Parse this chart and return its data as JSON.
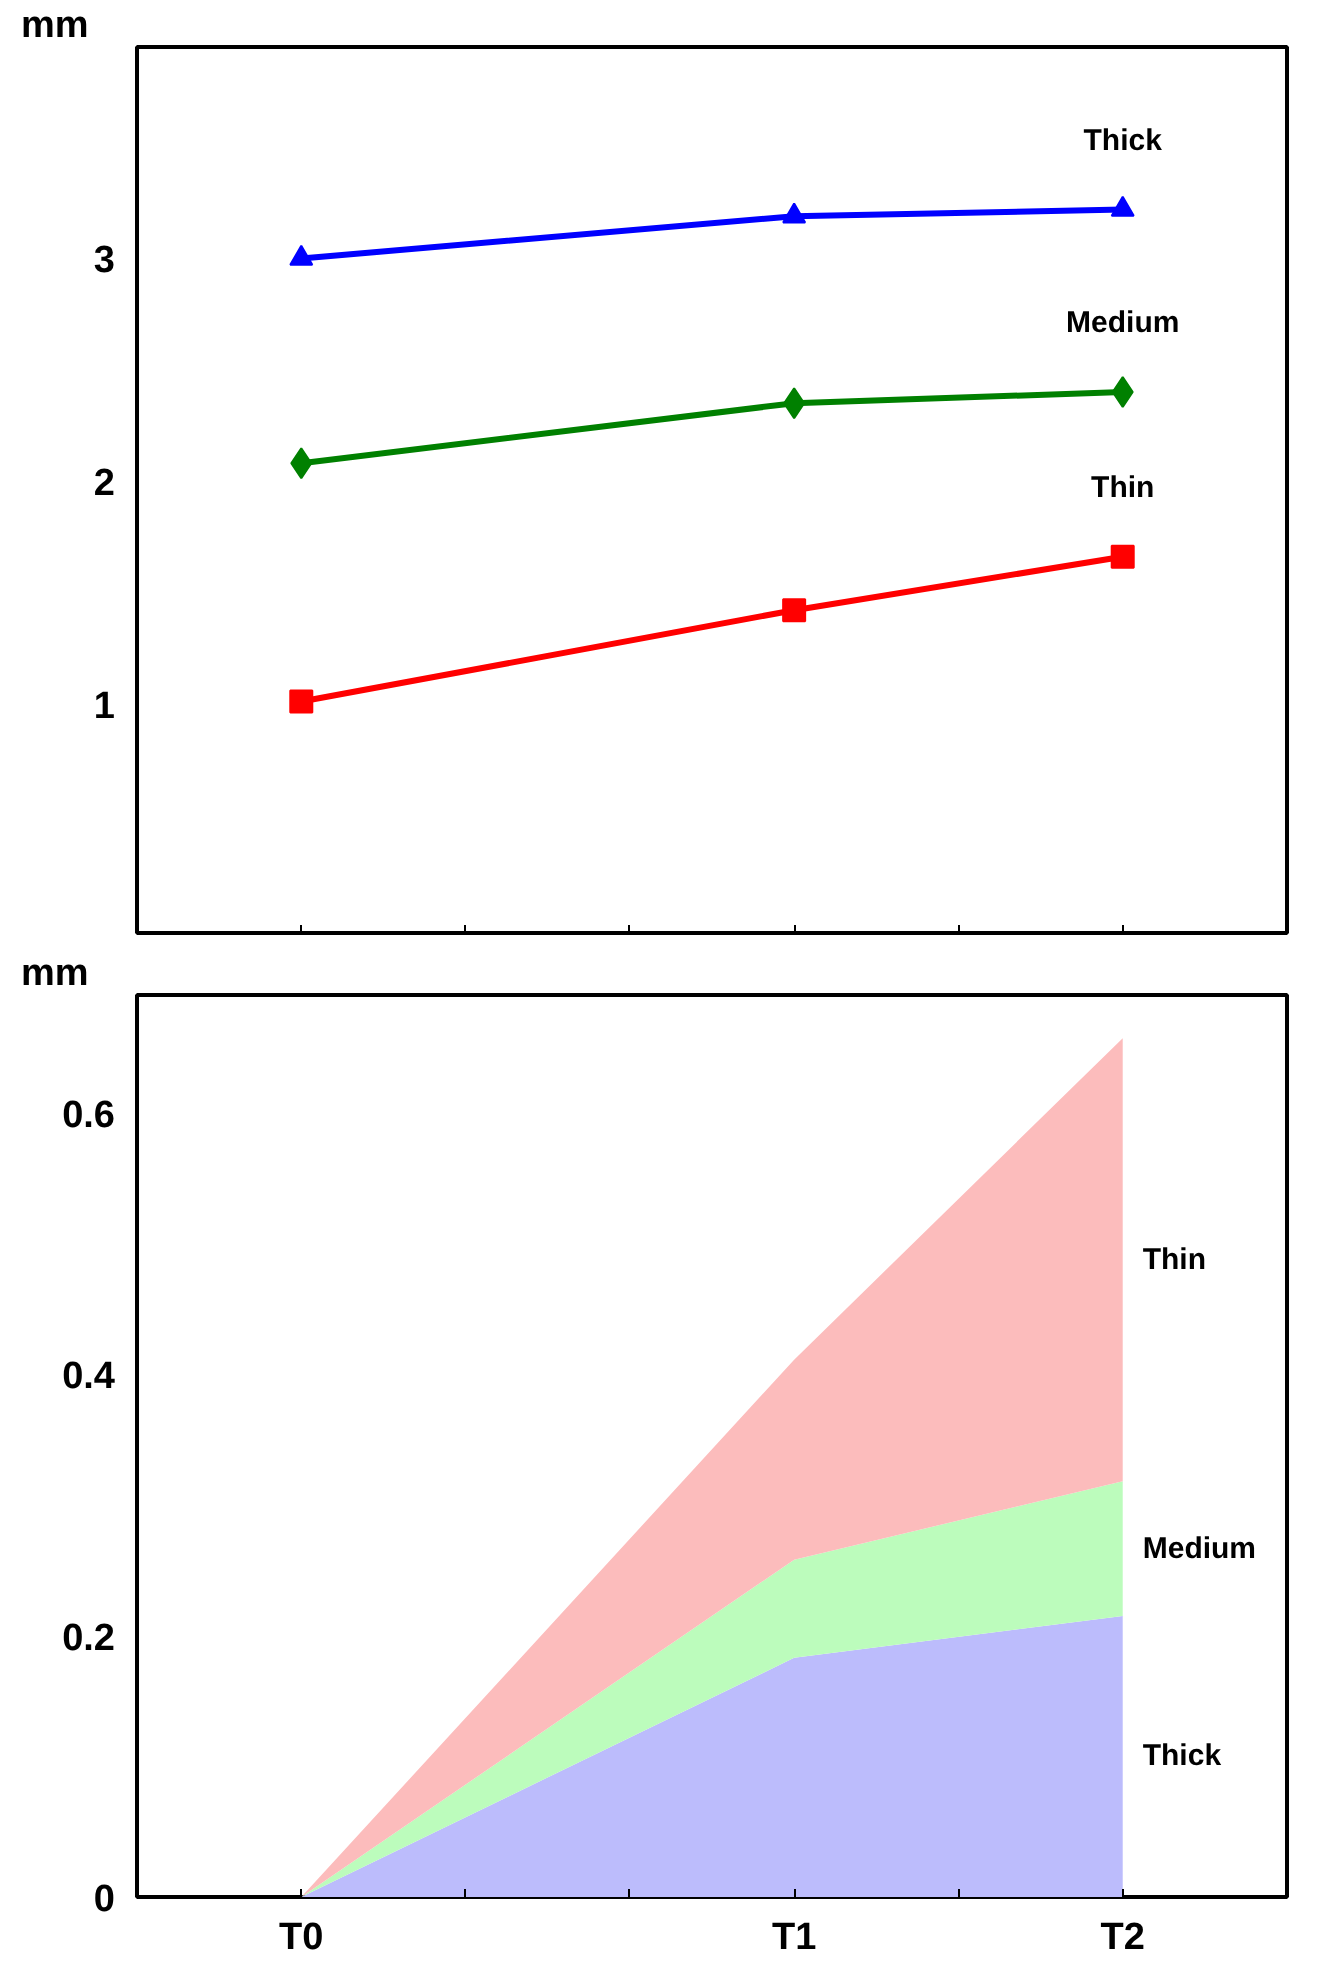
{
  "chart_data": [
    {
      "type": "line",
      "ylabel": "mm",
      "categories": [
        null,
        null,
        null,
        null,
        null,
        null
      ],
      "ylim": [
        -0.03,
        3.95
      ],
      "yticks": [
        1,
        2,
        3
      ],
      "tick_labels": "y",
      "grid": false,
      "series": [
        {
          "name": "Thick",
          "color": "#0000ff",
          "marker": "triangle",
          "values": [
            3.0,
            null,
            null,
            3.19,
            null,
            3.22
          ]
        },
        {
          "name": "Medium",
          "color": "#008000",
          "marker": "diamond",
          "values": [
            2.08,
            null,
            null,
            2.35,
            null,
            2.4
          ]
        },
        {
          "name": "Thin",
          "color": "#ff0000",
          "marker": "square",
          "values": [
            1.01,
            null,
            null,
            1.42,
            null,
            1.66
          ]
        }
      ]
    },
    {
      "type": "area",
      "stacked": true,
      "ylabel": "mm",
      "categories": [
        "T0",
        null,
        null,
        "T1",
        null,
        "T2"
      ],
      "ylim": [
        0,
        0.69
      ],
      "yticks": [
        0,
        0.2,
        0.4,
        0.6
      ],
      "grid": false,
      "series": [
        {
          "name": "Thick",
          "color": "#bcbcfc",
          "values": [
            0,
            null,
            null,
            0.183,
            null,
            0.215
          ]
        },
        {
          "name": "Medium",
          "color": "#bcfcbc",
          "values": [
            0,
            null,
            null,
            0.075,
            null,
            0.103
          ]
        },
        {
          "name": "Thin",
          "color": "#fcbcbc",
          "values": [
            0,
            null,
            null,
            0.153,
            null,
            0.339
          ]
        }
      ]
    }
  ]
}
